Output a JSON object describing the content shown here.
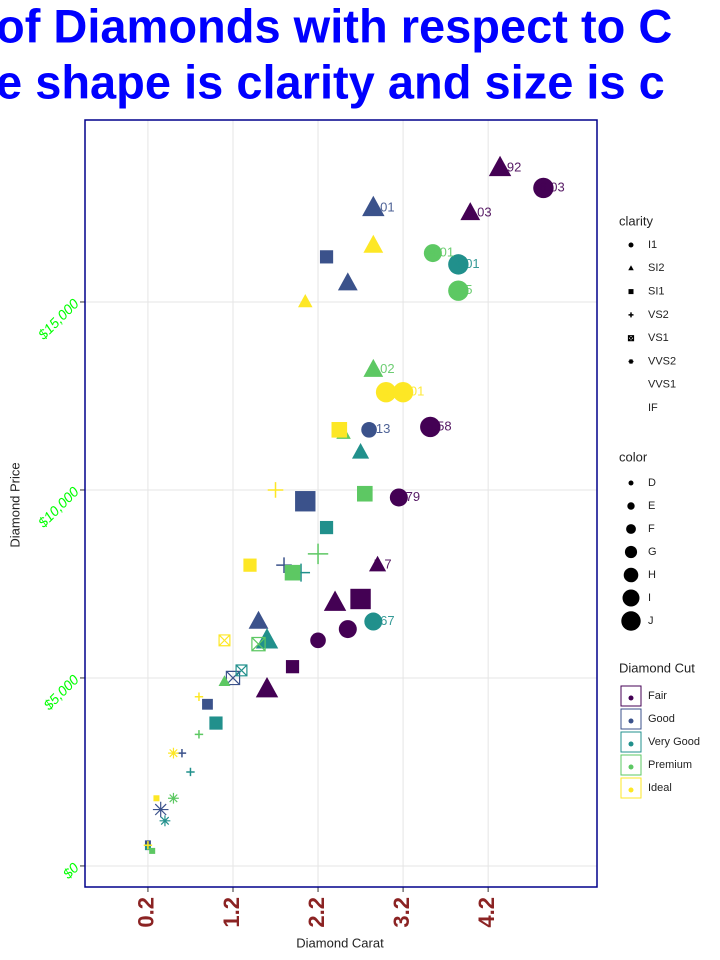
{
  "chart_data": {
    "type": "scatter",
    "title_lines": [
      "of Diamonds with respect to C",
      "e shape is clarity and size is c"
    ],
    "x_label": "Diamond Carat",
    "y_label": "Diamond Price",
    "xlim": [
      -0.54,
      5.48
    ],
    "ylim": [
      -560,
      19840
    ],
    "xticks": [
      {
        "value": 0.2,
        "label": "0.2"
      },
      {
        "value": 1.2,
        "label": "1.2"
      },
      {
        "value": 2.2,
        "label": "2.2"
      },
      {
        "value": 3.2,
        "label": "3.2"
      },
      {
        "value": 4.2,
        "label": "4.2"
      }
    ],
    "yticks": [
      {
        "value": 0,
        "label": "$0"
      },
      {
        "value": 5000,
        "label": "$5,000"
      },
      {
        "value": 10000,
        "label": "$10,000"
      },
      {
        "value": 15000,
        "label": "$15,000"
      }
    ],
    "grid": true,
    "clarity_title": "clarity",
    "clarity_levels": [
      "I1",
      "SI2",
      "SI1",
      "VS2",
      "VS1",
      "VVS2",
      "VVS1",
      "IF"
    ],
    "color_title": "color",
    "color_levels": [
      "D",
      "E",
      "F",
      "G",
      "H",
      "I",
      "J"
    ],
    "legend_title": "Diamond Cut",
    "series": [
      {
        "name": "Fair",
        "color": "#440154",
        "x": [
          4.85,
          4.34,
          3.99,
          3.52,
          3.15,
          2.9,
          2.7,
          2.55,
          2.4,
          2.2,
          1.9,
          1.6
        ],
        "values": [
          18032,
          18564,
          17367,
          11676,
          9800,
          8000,
          7100,
          6300,
          7000,
          6000,
          5300,
          4700
        ],
        "clarity": [
          "I1",
          "SI2",
          "SI2",
          "I1",
          "I1",
          "SI2",
          "SI1",
          "I1",
          "SI2",
          "I1",
          "SI1",
          "SI2"
        ],
        "color_grade": [
          "J",
          "J",
          "I",
          "J",
          "I",
          "H",
          "J",
          "I",
          "J",
          "H",
          "G",
          "J"
        ],
        "labels": [
          "6.03",
          "6.92",
          "5.03",
          "5.58",
          "5.79",
          "5.7",
          null,
          null,
          null,
          null,
          null,
          null
        ]
      },
      {
        "name": "Good",
        "color": "#3b528b",
        "x": [
          2.85,
          2.8,
          2.55,
          2.3,
          2.05,
          1.8,
          1.5,
          1.2,
          0.9,
          0.6,
          0.35,
          0.2
        ],
        "values": [
          17500,
          11600,
          15500,
          16200,
          9700,
          8000,
          6500,
          5000,
          4300,
          3000,
          1500,
          600
        ],
        "clarity": [
          "SI2",
          "I1",
          "SI2",
          "SI1",
          "SI1",
          "VS2",
          "SI2",
          "VS1",
          "SI1",
          "VS2",
          "VVS2",
          "SI1"
        ],
        "color_grade": [
          "J",
          "H",
          "I",
          "G",
          "J",
          "H",
          "I",
          "G",
          "F",
          "E",
          "H",
          "D"
        ],
        "labels": [
          "5.01",
          "4.13",
          null,
          null,
          null,
          null,
          null,
          null,
          null,
          null,
          null,
          null
        ]
      },
      {
        "name": "Very Good",
        "color": "#21908c",
        "x": [
          3.85,
          2.85,
          2.7,
          2.3,
          2.0,
          1.6,
          1.3,
          1.0,
          0.7,
          0.4,
          0.2
        ],
        "values": [
          16000,
          6500,
          11000,
          9000,
          7800,
          6000,
          5200,
          3800,
          2500,
          1200,
          500
        ],
        "clarity": [
          "I1",
          "I1",
          "SI2",
          "SI1",
          "VS2",
          "SI2",
          "VS1",
          "SI1",
          "VS2",
          "VVS2",
          "SI1"
        ],
        "color_grade": [
          "J",
          "I",
          "H",
          "G",
          "I",
          "J",
          "F",
          "G",
          "E",
          "F",
          "D"
        ],
        "labels": [
          "4.01",
          "5.67",
          null,
          null,
          null,
          null,
          null,
          null,
          null,
          null,
          null
        ]
      },
      {
        "name": "Premium",
        "color": "#5dc863",
        "x": [
          3.85,
          3.55,
          2.85,
          2.75,
          2.5,
          2.2,
          1.9,
          1.5,
          1.1,
          0.8,
          0.5,
          0.25
        ],
        "values": [
          15300,
          16300,
          13200,
          9900,
          11500,
          8300,
          7800,
          5900,
          4900,
          3500,
          1800,
          400
        ],
        "clarity": [
          "I1",
          "I1",
          "SI2",
          "SI1",
          "SI2",
          "VS2",
          "SI1",
          "VS1",
          "SI2",
          "VS2",
          "VVS2",
          "SI1"
        ],
        "color_grade": [
          "J",
          "I",
          "I",
          "H",
          "G",
          "J",
          "H",
          "G",
          "F",
          "E",
          "F",
          "D"
        ],
        "labels": [
          "4.5",
          "4.01",
          "4.02",
          null,
          null,
          null,
          null,
          null,
          null,
          null,
          null,
          null
        ]
      },
      {
        "name": "Ideal",
        "color": "#fde725",
        "x": [
          3.0,
          3.2,
          2.85,
          2.45,
          2.05,
          1.7,
          1.4,
          1.1,
          0.8,
          0.5,
          0.3,
          0.2
        ],
        "values": [
          12600,
          12600,
          16500,
          11600,
          15000,
          10000,
          8000,
          6000,
          4500,
          3000,
          1800,
          550
        ],
        "clarity": [
          "I1",
          "I1",
          "SI2",
          "SI1",
          "SI2",
          "VS2",
          "SI1",
          "VS1",
          "VS2",
          "VVS2",
          "SI1",
          "VS2"
        ],
        "color_grade": [
          "J",
          "J",
          "I",
          "H",
          "G",
          "H",
          "G",
          "F",
          "E",
          "F",
          "D",
          "E"
        ],
        "labels": [
          "3.5",
          "3.01",
          null,
          null,
          null,
          null,
          null,
          null,
          null,
          null,
          null,
          null
        ]
      }
    ]
  }
}
